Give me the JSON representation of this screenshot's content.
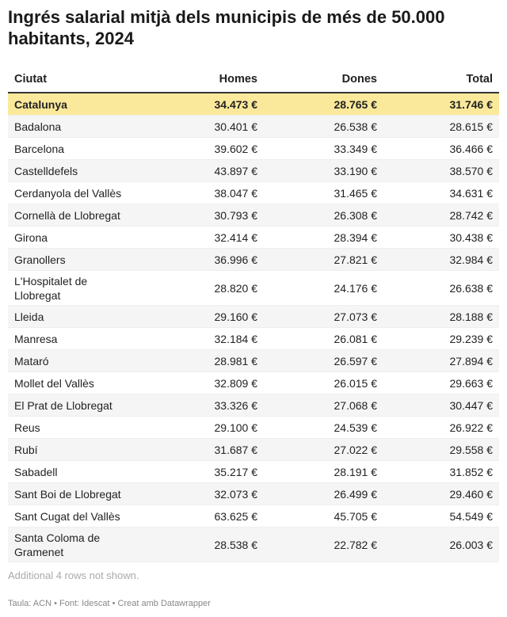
{
  "chart_data": {
    "type": "table",
    "title": "Ingrés salarial mitjà dels municipis de més de 50.000 habitants, 2024",
    "columns": [
      "Ciutat",
      "Homes",
      "Dones",
      "Total"
    ],
    "highlight_color": "#fbe99b",
    "rows": [
      {
        "city": "Catalunya",
        "homes": "34.473 €",
        "dones": "28.765 €",
        "total": "31.746 €",
        "highlighted": true
      },
      {
        "city": "Badalona",
        "homes": "30.401 €",
        "dones": "26.538 €",
        "total": "28.615 €"
      },
      {
        "city": "Barcelona",
        "homes": "39.602 €",
        "dones": "33.349 €",
        "total": "36.466 €"
      },
      {
        "city": "Castelldefels",
        "homes": "43.897 €",
        "dones": "33.190 €",
        "total": "38.570 €"
      },
      {
        "city": "Cerdanyola del Vallès",
        "homes": "38.047 €",
        "dones": "31.465 €",
        "total": "34.631 €"
      },
      {
        "city": "Cornellà de Llobregat",
        "homes": "30.793 €",
        "dones": "26.308 €",
        "total": "28.742 €"
      },
      {
        "city": "Girona",
        "homes": "32.414 €",
        "dones": "28.394 €",
        "total": "30.438 €"
      },
      {
        "city": "Granollers",
        "homes": "36.996 €",
        "dones": "27.821 €",
        "total": "32.984 €"
      },
      {
        "city": "L'Hospitalet de Llobregat",
        "homes": "28.820 €",
        "dones": "24.176 €",
        "total": "26.638 €"
      },
      {
        "city": "Lleida",
        "homes": "29.160 €",
        "dones": "27.073 €",
        "total": "28.188 €"
      },
      {
        "city": "Manresa",
        "homes": "32.184 €",
        "dones": "26.081 €",
        "total": "29.239 €"
      },
      {
        "city": "Mataró",
        "homes": "28.981 €",
        "dones": "26.597 €",
        "total": "27.894 €"
      },
      {
        "city": "Mollet del Vallès",
        "homes": "32.809 €",
        "dones": "26.015 €",
        "total": "29.663 €"
      },
      {
        "city": "El Prat de Llobregat",
        "homes": "33.326 €",
        "dones": "27.068 €",
        "total": "30.447 €"
      },
      {
        "city": "Reus",
        "homes": "29.100 €",
        "dones": "24.539 €",
        "total": "26.922 €"
      },
      {
        "city": "Rubí",
        "homes": "31.687 €",
        "dones": "27.022 €",
        "total": "29.558 €"
      },
      {
        "city": "Sabadell",
        "homes": "35.217 €",
        "dones": "28.191 €",
        "total": "31.852 €"
      },
      {
        "city": "Sant Boi de Llobregat",
        "homes": "32.073 €",
        "dones": "26.499 €",
        "total": "29.460 €"
      },
      {
        "city": "Sant Cugat del Vallès",
        "homes": "63.625 €",
        "dones": "45.705 €",
        "total": "54.549 €"
      },
      {
        "city": "Santa Coloma de Gramenet",
        "homes": "28.538 €",
        "dones": "22.782 €",
        "total": "26.003 €"
      }
    ],
    "note": "Additional 4 rows not shown.",
    "footer": "Taula: ACN • Font: Idescat • Creat amb Datawrapper"
  }
}
